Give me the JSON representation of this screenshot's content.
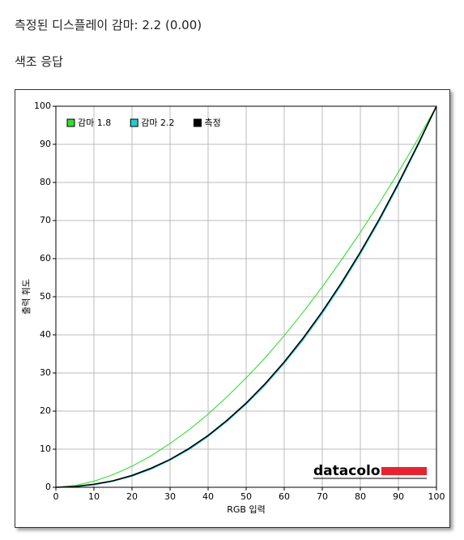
{
  "header": {
    "title": "측정된 디스플레이 감마: 2.2 (0.00)",
    "section": "색조 응답"
  },
  "chart_data": {
    "type": "line",
    "xlabel": "RGB 입력",
    "ylabel": "출력 휘도",
    "watermark": "datacolor",
    "x": [
      0,
      5,
      10,
      15,
      20,
      25,
      30,
      35,
      40,
      45,
      50,
      55,
      60,
      65,
      70,
      75,
      80,
      85,
      90,
      95,
      100
    ],
    "series": [
      {
        "name": "감마 1.8",
        "color": "#33dd33",
        "values": [
          0,
          0.46,
          1.58,
          3.3,
          5.52,
          8.25,
          11.5,
          15.1,
          19.2,
          23.8,
          28.7,
          34.0,
          39.8,
          46.0,
          52.6,
          59.6,
          66.9,
          74.6,
          82.7,
          91.2,
          100
        ]
      },
      {
        "name": "감마 2.2",
        "color": "#22cccc",
        "values": [
          0,
          0.14,
          0.63,
          1.54,
          2.9,
          4.7,
          7.1,
          9.9,
          13.3,
          17.3,
          21.8,
          26.8,
          32.5,
          38.7,
          45.6,
          53.1,
          61.2,
          69.9,
          79.3,
          89.3,
          100
        ]
      },
      {
        "name": "측정",
        "color": "#000000",
        "values": [
          0,
          0.2,
          0.8,
          1.7,
          3.1,
          5.0,
          7.3,
          10.2,
          13.6,
          17.6,
          22.1,
          27.2,
          32.9,
          39.2,
          46.1,
          53.6,
          61.7,
          70.4,
          79.8,
          89.7,
          100
        ]
      }
    ],
    "xlim": [
      0,
      100
    ],
    "ylim": [
      0,
      100
    ],
    "xticks": [
      0,
      10,
      20,
      30,
      40,
      50,
      60,
      70,
      80,
      90,
      100
    ],
    "yticks": [
      0,
      10,
      20,
      30,
      40,
      50,
      60,
      70,
      80,
      90,
      100
    ],
    "grid": true,
    "legend": "upper left"
  }
}
